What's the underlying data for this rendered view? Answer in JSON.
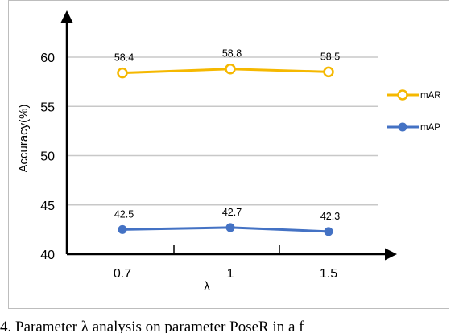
{
  "chart_data": {
    "type": "line",
    "categories": [
      "0.7",
      "1",
      "1.5"
    ],
    "xlabel": "λ",
    "ylabel": "Accuracy(%)",
    "yticks": [
      "40",
      "45",
      "50",
      "55",
      "60"
    ],
    "ylim": [
      40,
      62
    ],
    "grid": true,
    "legend_position": "right",
    "series": [
      {
        "name": "mAR",
        "values": [
          58.4,
          58.8,
          58.5
        ],
        "labels": [
          "58.4",
          "58.8",
          "58.5"
        ],
        "color": "#F5B800"
      },
      {
        "name": "mAP",
        "values": [
          42.5,
          42.7,
          42.3
        ],
        "labels": [
          "42.5",
          "42.7",
          "42.3"
        ],
        "color": "#4472C4"
      }
    ]
  },
  "caption": "4. Parameter λ analysis on parameter PoseR in a f"
}
